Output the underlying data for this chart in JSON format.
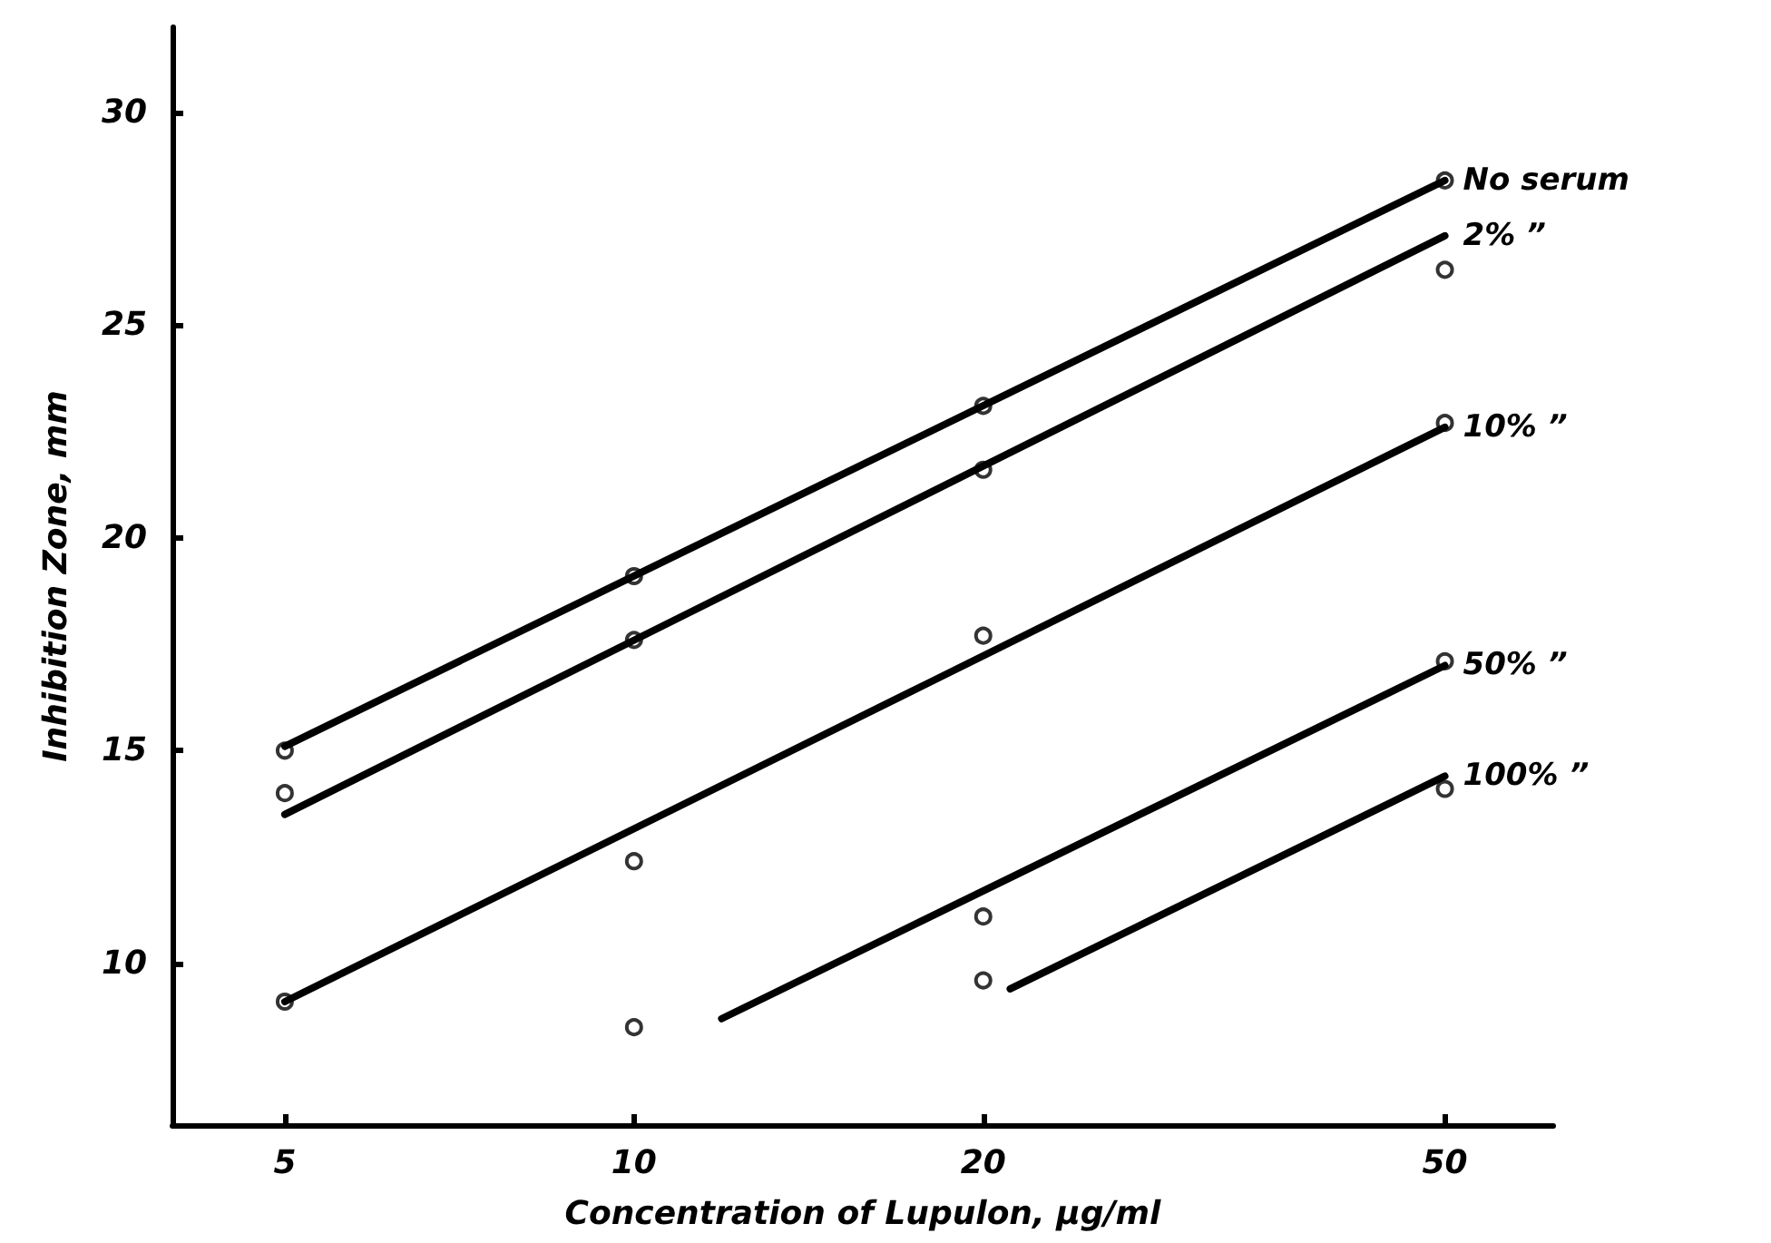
{
  "chart_data": {
    "type": "scatter",
    "xlabel": "Concentration of Lupulon, µg/ml",
    "ylabel": "Inhibition Zone, mm",
    "log": "x",
    "xlim": [
      4,
      62
    ],
    "xticks": [
      5,
      10,
      20,
      50
    ],
    "ylim": [
      6.2,
      32
    ],
    "yticks": [
      10,
      15,
      20,
      25,
      30
    ],
    "grid": false,
    "legend": false,
    "marker": "circle",
    "series": [
      {
        "color": "#000000",
        "x": [
          5,
          10,
          20,
          50
        ],
        "values": [
          15.0,
          19.1,
          23.1,
          28.4
        ]
      },
      {
        "color": "#000000",
        "x": [
          5,
          10,
          20,
          50
        ],
        "values": [
          14.0,
          17.6,
          21.6,
          26.3
        ]
      },
      {
        "color": "#000000",
        "x": [
          5,
          10,
          20,
          50
        ],
        "values": [
          9.1,
          12.4,
          17.7,
          22.7
        ]
      },
      {
        "color": "#000000",
        "x": [
          10,
          20,
          50
        ],
        "values": [
          8.5,
          11.1,
          17.1
        ]
      },
      {
        "color": "#000000",
        "x": [
          20,
          50
        ],
        "values": [
          9.6,
          14.1
        ]
      },
      {
        "type": "line",
        "name": "No serum",
        "color": "#000000",
        "marker": "none",
        "line_style": "solid",
        "x": [
          5,
          50
        ],
        "values": [
          15.1,
          28.4
        ]
      },
      {
        "type": "line",
        "name": "2% ”",
        "color": "#000000",
        "marker": "none",
        "line_style": "solid",
        "x": [
          5,
          50
        ],
        "values": [
          13.5,
          27.1
        ]
      },
      {
        "type": "line",
        "name": "10% ”",
        "color": "#000000",
        "marker": "none",
        "line_style": "solid",
        "x": [
          5,
          50
        ],
        "values": [
          9.1,
          22.6
        ]
      },
      {
        "type": "line",
        "name": "50% ”",
        "color": "#000000",
        "marker": "none",
        "line_style": "solid",
        "x": [
          11.9,
          50
        ],
        "values": [
          8.7,
          17.0
        ]
      },
      {
        "type": "line",
        "name": "100% ”",
        "color": "#000000",
        "marker": "none",
        "line_style": "solid",
        "x": [
          21.1,
          50
        ],
        "values": [
          9.4,
          14.4
        ]
      }
    ]
  }
}
